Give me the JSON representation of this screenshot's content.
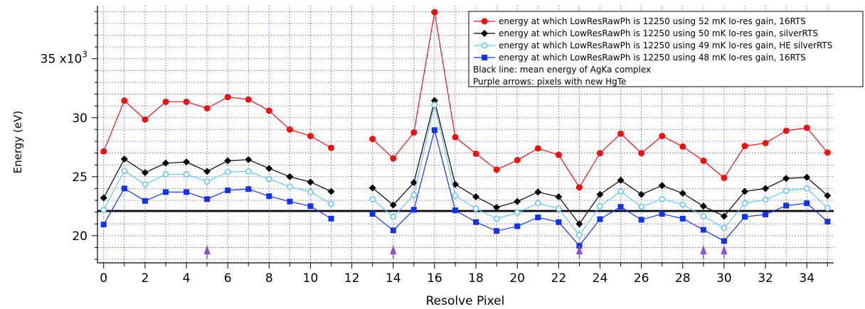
{
  "chart_data": {
    "type": "line",
    "xlabel": "Resolve Pixel",
    "ylabel": "Energy (eV)",
    "y_multiplier_label": "35 x10",
    "y_multiplier_exp": "3",
    "xlim": [
      -0.3,
      35.3
    ],
    "ylim": [
      17700,
      39500
    ],
    "x_ticks": [
      0,
      2,
      4,
      6,
      8,
      10,
      12,
      14,
      16,
      18,
      20,
      22,
      24,
      26,
      28,
      30,
      32,
      34
    ],
    "y_ticks": [
      {
        "value": 20000,
        "label": "20"
      },
      {
        "value": 25000,
        "label": "25"
      },
      {
        "value": 30000,
        "label": "30"
      },
      {
        "value": 35000,
        "label": "35"
      }
    ],
    "grid": true,
    "legend_position": "top-right",
    "x": [
      0,
      1,
      2,
      3,
      4,
      5,
      6,
      7,
      8,
      9,
      10,
      11,
      12,
      13,
      14,
      15,
      16,
      17,
      18,
      19,
      20,
      21,
      22,
      23,
      24,
      25,
      26,
      27,
      28,
      29,
      30,
      31,
      32,
      33,
      34,
      35
    ],
    "series": [
      {
        "name": "energy at which LowResRawPh is 12250 using 52 mK lo-res gain, 16RTS",
        "color": "#ee1111",
        "marker": "circle",
        "values": [
          27150,
          31450,
          29850,
          31350,
          31350,
          30800,
          31750,
          31550,
          30600,
          29000,
          28450,
          27450,
          null,
          28200,
          26550,
          28750,
          38950,
          28350,
          26950,
          25600,
          26400,
          27400,
          26850,
          24100,
          27000,
          28650,
          27000,
          28450,
          27550,
          26350,
          24900,
          27600,
          27850,
          28900,
          29150,
          27050
        ]
      },
      {
        "name": "energy at which LowResRawPh is 12250 using 50 mK lo-res gain, silverRTS",
        "color": "#000000",
        "marker": "diamond",
        "values": [
          23200,
          26500,
          25350,
          26150,
          26250,
          25450,
          26350,
          26450,
          25700,
          25000,
          24550,
          23750,
          null,
          24050,
          22600,
          24500,
          31450,
          24350,
          23300,
          22400,
          22900,
          23700,
          23300,
          21000,
          23500,
          24700,
          23500,
          24250,
          23600,
          22500,
          21650,
          23750,
          24000,
          24850,
          24950,
          23400
        ]
      },
      {
        "name": "energy at which LowResRawPh is 12250 using 49 mK lo-res gain, HE silverRTS",
        "color": "#66c8f0",
        "marker": "circle-open",
        "values": [
          22200,
          25500,
          24350,
          25200,
          25200,
          24600,
          25400,
          25450,
          24800,
          24150,
          23700,
          22700,
          null,
          23100,
          21600,
          23450,
          31100,
          23400,
          22300,
          21450,
          21950,
          22750,
          22300,
          20050,
          22500,
          23750,
          22450,
          23100,
          22650,
          21650,
          20650,
          22750,
          23050,
          23800,
          24000,
          22350
        ]
      },
      {
        "name": "energy at which LowResRawPh is 12250 using 48 mK lo-res gain, 16RTS",
        "color": "#1133ee",
        "marker": "square",
        "values": [
          20950,
          24000,
          22950,
          23700,
          23700,
          23100,
          23850,
          23950,
          23350,
          22900,
          22500,
          21450,
          null,
          21850,
          20450,
          22200,
          28950,
          22150,
          21150,
          20400,
          20800,
          21550,
          21150,
          19150,
          21400,
          22450,
          21350,
          21850,
          21450,
          20500,
          19550,
          21600,
          21800,
          22550,
          22750,
          21200
        ]
      }
    ],
    "mean_line": {
      "value": 22100,
      "color": "#000000"
    },
    "arrows": {
      "pixels": [
        5,
        14,
        23,
        29,
        30
      ],
      "color": "#8a4fd8"
    },
    "legend_notes": [
      "Black line: mean energy of AgKa complex",
      "Purple arrows: pixels with new HgTe"
    ]
  }
}
